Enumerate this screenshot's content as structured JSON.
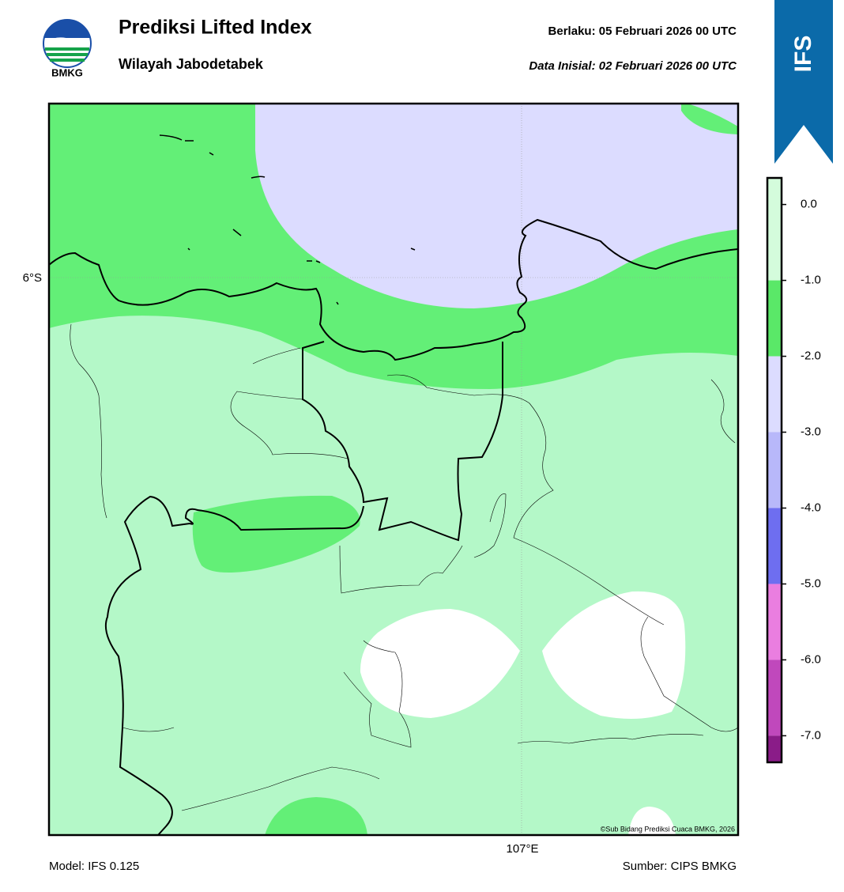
{
  "header": {
    "logo": "BMKG",
    "title": "Prediksi Lifted Index",
    "region": "Wilayah Jabodetabek",
    "valid": "Berlaku:  05 Februari 2026 00 UTC",
    "initial": "Data Inisial:  02 Februari 2026 00 UTC",
    "banner": "IFS"
  },
  "map": {
    "lat_label": "6°S",
    "lon_label": "107°E",
    "credit": "©Sub Bidang Prediksi Cuaca BMKG, 2026"
  },
  "footer": {
    "model": "Model: IFS 0.125",
    "source": "Sumber: CIPS BMKG"
  },
  "colorbar": {
    "lim": [
      -7.35,
      0.35
    ],
    "bands": [
      {
        "from": 0.35,
        "to": -1,
        "color": "#d4fcdc"
      },
      {
        "from": -1,
        "to": -2,
        "color": "#5ae868"
      },
      {
        "from": -2,
        "to": -3,
        "color": "#dcdcff"
      },
      {
        "from": -3,
        "to": -4,
        "color": "#b8b8fa"
      },
      {
        "from": -4,
        "to": -5,
        "color": "#6e6ef0"
      },
      {
        "from": -5,
        "to": -6,
        "color": "#ea7ee0"
      },
      {
        "from": -6,
        "to": -7,
        "color": "#c048bc"
      },
      {
        "from": -7,
        "to": -7.35,
        "color": "#8a1c88"
      }
    ],
    "ticks": [
      {
        "value": 0,
        "label": "0.0"
      },
      {
        "value": -1,
        "label": "-1.0"
      },
      {
        "value": -2,
        "label": "-2.0"
      },
      {
        "value": -3,
        "label": "-3.0"
      },
      {
        "value": -4,
        "label": "-4.0"
      },
      {
        "value": -5,
        "label": "-5.0"
      },
      {
        "value": -6,
        "label": "-6.0"
      },
      {
        "value": -7,
        "label": "-7.0"
      }
    ]
  }
}
